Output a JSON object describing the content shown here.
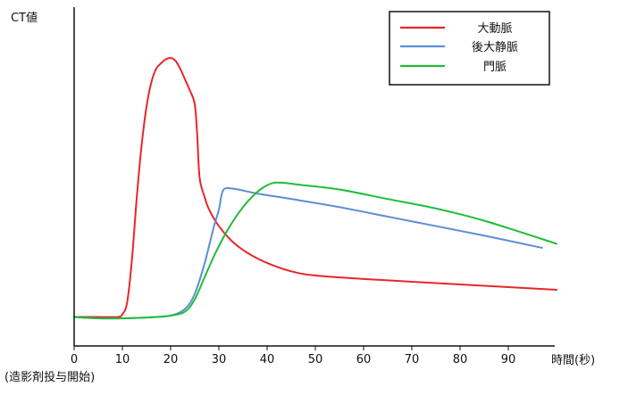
{
  "chart_data": {
    "type": "line",
    "ylabel": "CT値",
    "xlabel": "時間(秒)",
    "x_origin_note": "(造影剤投与開始)",
    "xlim": [
      0,
      100
    ],
    "ylim": [
      0,
      100
    ],
    "xticks": [
      0,
      10,
      20,
      30,
      40,
      50,
      60,
      70,
      80,
      90
    ],
    "y_ticks_shown": false,
    "grid": false,
    "legend_position": "top-right",
    "series": [
      {
        "name": "大動脈",
        "color": "#e8262b",
        "points": [
          [
            0,
            0.5
          ],
          [
            5,
            0.5
          ],
          [
            9,
            0.5
          ],
          [
            10,
            1.5
          ],
          [
            11,
            6
          ],
          [
            12,
            22
          ],
          [
            13,
            45
          ],
          [
            14,
            64
          ],
          [
            15,
            78
          ],
          [
            16,
            87
          ],
          [
            17,
            92
          ],
          [
            18,
            94
          ],
          [
            19,
            95.5
          ],
          [
            20,
            96
          ],
          [
            21,
            95
          ],
          [
            22,
            92
          ],
          [
            23,
            88
          ],
          [
            24,
            84
          ],
          [
            25,
            79
          ],
          [
            25.5,
            68
          ],
          [
            26,
            52
          ],
          [
            27,
            45
          ],
          [
            28,
            40
          ],
          [
            30,
            34
          ],
          [
            33,
            28
          ],
          [
            37,
            23
          ],
          [
            42,
            19
          ],
          [
            47,
            16.5
          ],
          [
            52,
            15.5
          ],
          [
            60,
            14.5
          ],
          [
            70,
            13.5
          ],
          [
            80,
            12.5
          ],
          [
            90,
            11.5
          ],
          [
            100,
            10.5
          ]
        ]
      },
      {
        "name": "後大静脈",
        "color": "#5b8fd4",
        "points": [
          [
            0,
            0.5
          ],
          [
            5,
            0
          ],
          [
            10,
            0
          ],
          [
            15,
            0.3
          ],
          [
            20,
            1
          ],
          [
            23,
            3.5
          ],
          [
            25,
            9
          ],
          [
            27,
            20
          ],
          [
            29,
            34
          ],
          [
            30,
            40
          ],
          [
            30.5,
            45
          ],
          [
            31,
            47.5
          ],
          [
            32,
            48
          ],
          [
            34,
            47.5
          ],
          [
            38,
            46
          ],
          [
            45,
            44
          ],
          [
            55,
            41
          ],
          [
            65,
            37.5
          ],
          [
            75,
            34
          ],
          [
            85,
            30.5
          ],
          [
            97,
            26
          ]
        ]
      },
      {
        "name": "門脈",
        "color": "#1fbd3a",
        "points": [
          [
            0,
            0.5
          ],
          [
            5,
            0
          ],
          [
            10,
            0
          ],
          [
            15,
            0.3
          ],
          [
            20,
            1
          ],
          [
            23,
            2.5
          ],
          [
            25,
            7
          ],
          [
            27,
            15
          ],
          [
            29,
            23
          ],
          [
            31,
            30
          ],
          [
            33,
            36
          ],
          [
            35,
            41
          ],
          [
            37,
            45
          ],
          [
            39,
            48
          ],
          [
            41,
            49.8
          ],
          [
            43,
            50
          ],
          [
            47,
            49.2
          ],
          [
            55,
            47.5
          ],
          [
            65,
            44
          ],
          [
            75,
            40.5
          ],
          [
            85,
            36
          ],
          [
            100,
            27.5
          ]
        ]
      }
    ]
  }
}
